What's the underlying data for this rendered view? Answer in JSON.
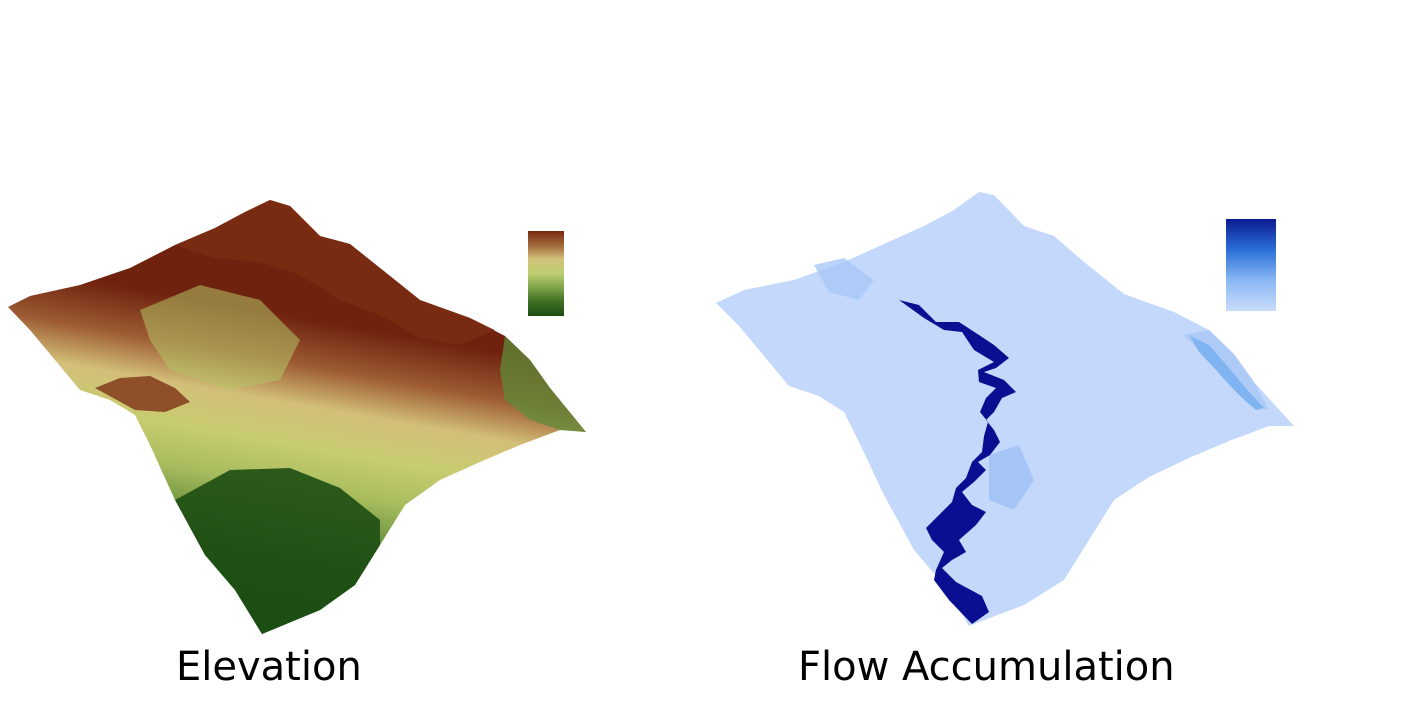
{
  "panels": [
    {
      "caption": "Elevation",
      "colormap": [
        "#7a2a10",
        "#a0673a",
        "#d2c27a",
        "#bccf6f",
        "#7fa24a",
        "#3f6e22",
        "#1c4d12"
      ]
    },
    {
      "caption": "Flow Accumulation",
      "colormap": [
        "#0b1a8f",
        "#2a6fd9",
        "#8ab8f4",
        "#c9dcfb"
      ]
    }
  ],
  "colors": {
    "background": "#ffffff",
    "flow_surface": "#c3d8fb",
    "flow_channel": "#0a0f91"
  }
}
